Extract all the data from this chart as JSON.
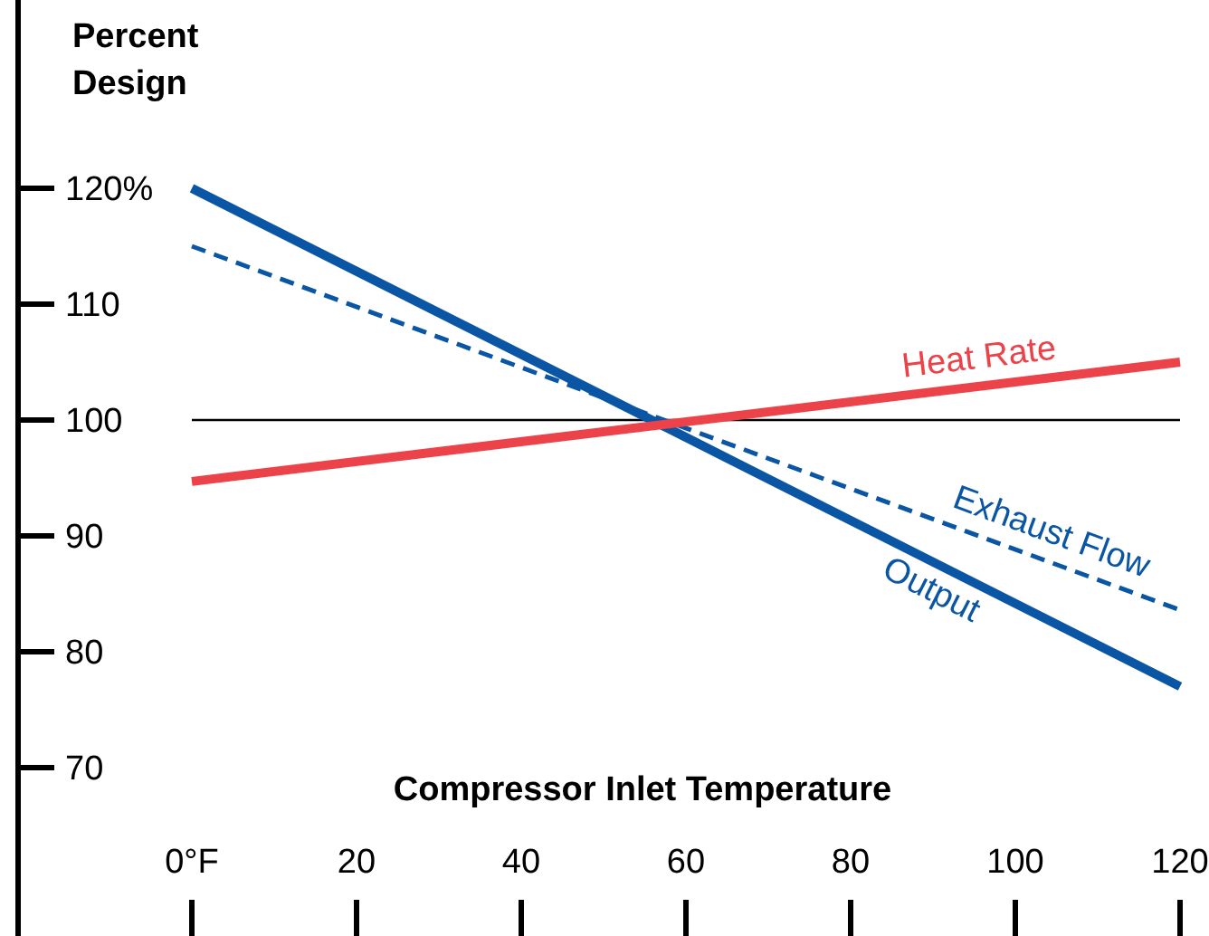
{
  "chart_data": {
    "type": "line",
    "ylabel": "Percent Design",
    "xlabel": "Compressor Inlet Temperature",
    "x": [
      0,
      120
    ],
    "series": [
      {
        "name": "Output",
        "color": "#0a56a5",
        "values": [
          120,
          77
        ],
        "line_style": "solid"
      },
      {
        "name": "Exhaust Flow",
        "color": "#0a56a5",
        "values": [
          115,
          83.6
        ],
        "line_style": "dashed"
      },
      {
        "name": "Heat Rate",
        "color": "#ec4249",
        "values": [
          94.7,
          105
        ],
        "line_style": "solid"
      }
    ],
    "xlim": [
      0,
      120
    ],
    "ylim": [
      70,
      120
    ],
    "xticks": [
      {
        "value": 0,
        "label": "0°F"
      },
      20,
      40,
      60,
      80,
      100,
      120
    ],
    "yticks": [
      70,
      80,
      90,
      100,
      110,
      {
        "value": 120,
        "label": "120%"
      }
    ],
    "ref_lines": [
      {
        "axis": "y",
        "value": 100,
        "color": "#000000"
      }
    ],
    "legend": false,
    "grid": false,
    "marker": "none"
  }
}
